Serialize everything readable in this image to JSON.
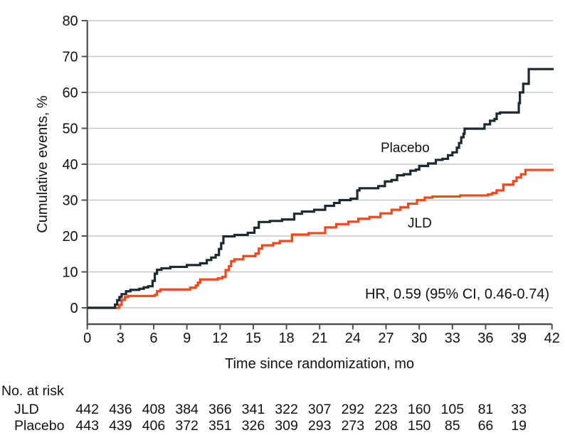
{
  "chart_data": {
    "type": "line",
    "subtype": "step-cumulative-incidence",
    "title": "",
    "xlabel": "Time since randomization, mo",
    "ylabel": "Cumulative events, %",
    "xlim": [
      0,
      42.15
    ],
    "ylim": [
      0,
      80
    ],
    "xticks": [
      0,
      3,
      6,
      9,
      12,
      15,
      18,
      21,
      24,
      27,
      30,
      33,
      36,
      39,
      42
    ],
    "yticks": [
      0,
      10,
      20,
      30,
      40,
      50,
      60,
      70,
      80
    ],
    "grid": "horizontal",
    "annotation": "HR, 0.59 (95% CI, 0.46-0.74)",
    "colors": {
      "placebo": "#1b2a31",
      "jld": "#f2481b",
      "gridline": "#c8c8c8",
      "axis": "#4c5053",
      "text": "#111111"
    },
    "series": [
      {
        "name": "Placebo",
        "color": "#1b2a31",
        "points": [
          [
            0,
            0
          ],
          [
            2.5,
            0.9
          ],
          [
            2.7,
            2.1
          ],
          [
            2.9,
            3.0
          ],
          [
            3.1,
            3.8
          ],
          [
            3.5,
            4.6
          ],
          [
            3.9,
            5.0
          ],
          [
            4.7,
            5.3
          ],
          [
            5.1,
            5.7
          ],
          [
            5.5,
            6.0
          ],
          [
            5.9,
            7.5
          ],
          [
            6.1,
            9.5
          ],
          [
            6.3,
            10.6
          ],
          [
            6.7,
            11.0
          ],
          [
            7.5,
            11.4
          ],
          [
            9.0,
            11.9
          ],
          [
            10.2,
            12.4
          ],
          [
            10.8,
            13.3
          ],
          [
            11.2,
            14.0
          ],
          [
            11.6,
            14.7
          ],
          [
            11.9,
            16.4
          ],
          [
            12.1,
            18.0
          ],
          [
            12.3,
            19.9
          ],
          [
            13.3,
            20.3
          ],
          [
            14.5,
            20.9
          ],
          [
            15.1,
            22.3
          ],
          [
            15.5,
            23.9
          ],
          [
            16.5,
            24.2
          ],
          [
            17.6,
            24.6
          ],
          [
            18.7,
            26.2
          ],
          [
            19.4,
            26.8
          ],
          [
            20.5,
            27.3
          ],
          [
            21.5,
            28.4
          ],
          [
            22.3,
            29.2
          ],
          [
            22.8,
            30.0
          ],
          [
            23.8,
            30.4
          ],
          [
            24.4,
            32.7
          ],
          [
            24.6,
            33.3
          ],
          [
            26.3,
            33.9
          ],
          [
            26.9,
            35.2
          ],
          [
            27.5,
            35.6
          ],
          [
            28.0,
            36.9
          ],
          [
            28.6,
            37.2
          ],
          [
            29.2,
            38.2
          ],
          [
            29.7,
            38.5
          ],
          [
            30.0,
            39.5
          ],
          [
            30.8,
            40.2
          ],
          [
            31.5,
            41.2
          ],
          [
            32.1,
            41.5
          ],
          [
            32.6,
            42.5
          ],
          [
            33.0,
            43.3
          ],
          [
            33.4,
            44.6
          ],
          [
            33.6,
            45.9
          ],
          [
            33.8,
            47.5
          ],
          [
            34.0,
            48.5
          ],
          [
            34.1,
            49.9
          ],
          [
            35.9,
            51.1
          ],
          [
            36.4,
            52.1
          ],
          [
            36.8,
            52.6
          ],
          [
            37.0,
            54.1
          ],
          [
            37.3,
            54.4
          ],
          [
            39.0,
            57.0
          ],
          [
            39.1,
            60.0
          ],
          [
            39.4,
            62.4
          ],
          [
            39.9,
            66.5
          ]
        ]
      },
      {
        "name": "JLD",
        "color": "#f2481b",
        "points": [
          [
            0,
            0
          ],
          [
            2.9,
            0.8
          ],
          [
            3.1,
            2.2
          ],
          [
            3.4,
            3.0
          ],
          [
            3.7,
            3.3
          ],
          [
            6.1,
            3.6
          ],
          [
            6.3,
            4.6
          ],
          [
            6.6,
            5.1
          ],
          [
            9.3,
            5.6
          ],
          [
            9.8,
            6.2
          ],
          [
            10.0,
            7.0
          ],
          [
            10.2,
            7.9
          ],
          [
            11.8,
            8.2
          ],
          [
            12.2,
            8.6
          ],
          [
            12.5,
            10.5
          ],
          [
            12.8,
            11.6
          ],
          [
            13.0,
            13.0
          ],
          [
            13.3,
            13.5
          ],
          [
            14.1,
            14.4
          ],
          [
            15.2,
            15.1
          ],
          [
            15.5,
            16.5
          ],
          [
            15.8,
            17.4
          ],
          [
            16.8,
            18.0
          ],
          [
            17.4,
            18.6
          ],
          [
            18.5,
            20.4
          ],
          [
            20.0,
            20.8
          ],
          [
            21.5,
            22.4
          ],
          [
            22.5,
            23.3
          ],
          [
            23.6,
            24.0
          ],
          [
            24.5,
            24.8
          ],
          [
            25.5,
            25.3
          ],
          [
            26.5,
            26.3
          ],
          [
            27.5,
            27.3
          ],
          [
            28.3,
            28.0
          ],
          [
            29.0,
            29.0
          ],
          [
            29.8,
            30.0
          ],
          [
            30.5,
            30.7
          ],
          [
            31.2,
            31.0
          ],
          [
            33.7,
            31.3
          ],
          [
            36.2,
            31.6
          ],
          [
            36.6,
            32.0
          ],
          [
            37.0,
            32.7
          ],
          [
            37.6,
            34.3
          ],
          [
            38.5,
            35.3
          ],
          [
            38.8,
            36.3
          ],
          [
            39.2,
            37.2
          ],
          [
            39.6,
            38.4
          ]
        ]
      }
    ],
    "risk_table": {
      "header": "No. at risk",
      "months": [
        0,
        3,
        6,
        9,
        12,
        15,
        18,
        21,
        24,
        27,
        30,
        33,
        36,
        39
      ],
      "rows": [
        {
          "name": "JLD",
          "counts": [
            442,
            436,
            408,
            384,
            366,
            341,
            322,
            307,
            292,
            223,
            160,
            105,
            81,
            33
          ]
        },
        {
          "name": "Placebo",
          "counts": [
            443,
            439,
            406,
            372,
            351,
            326,
            309,
            293,
            273,
            208,
            150,
            85,
            66,
            19
          ]
        }
      ]
    }
  }
}
